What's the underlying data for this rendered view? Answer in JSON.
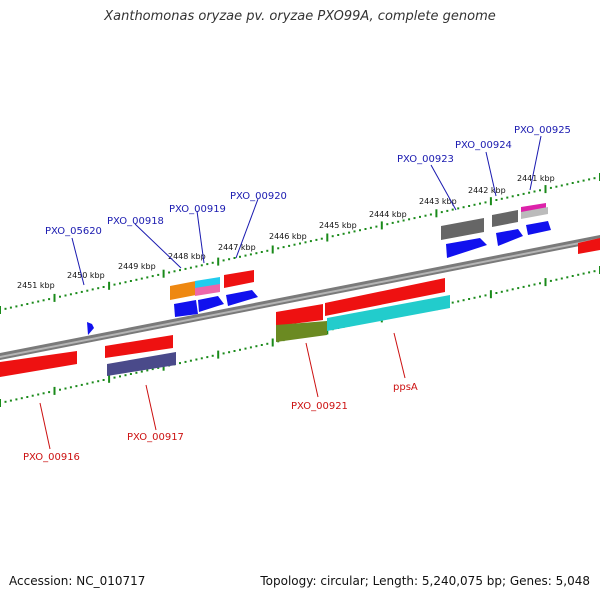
{
  "title": "Xanthomonas oryzae pv. oryzae PXO99A, complete genome",
  "footer": {
    "accession": "Accession: NC_010717",
    "topology": "Topology: circular; Length: 5,240,075 bp; Genes: 5,048"
  },
  "colors": {
    "red": "#ee1111",
    "blue": "#1111ee",
    "cyan": "#22cccc",
    "olive": "#6b8a22",
    "slate": "#4a4a8a",
    "orange": "#ee8811",
    "pink": "#ee66aa",
    "magenta": "#dd22aa",
    "gray": "#666666",
    "tick": "#1a8a1a",
    "label_blue": "#1a1ab0",
    "label_red": "#cc1111"
  },
  "scale_labels": [
    "2441 kbp",
    "2442 kbp",
    "2443 kbp",
    "2444 kbp",
    "2445 kbp",
    "2446 kbp",
    "2447 kbp",
    "2448 kbp",
    "2449 kbp",
    "2450 kbp",
    "2451 kbp"
  ],
  "genes_top": [
    "PXO_00925",
    "PXO_00924",
    "PXO_00923",
    "PXO_00920",
    "PXO_00919",
    "PXO_00918",
    "PXO_05620"
  ],
  "genes_bottom": [
    "PXO_00921",
    "ppsA",
    "PXO_00917",
    "PXO_00916"
  ]
}
